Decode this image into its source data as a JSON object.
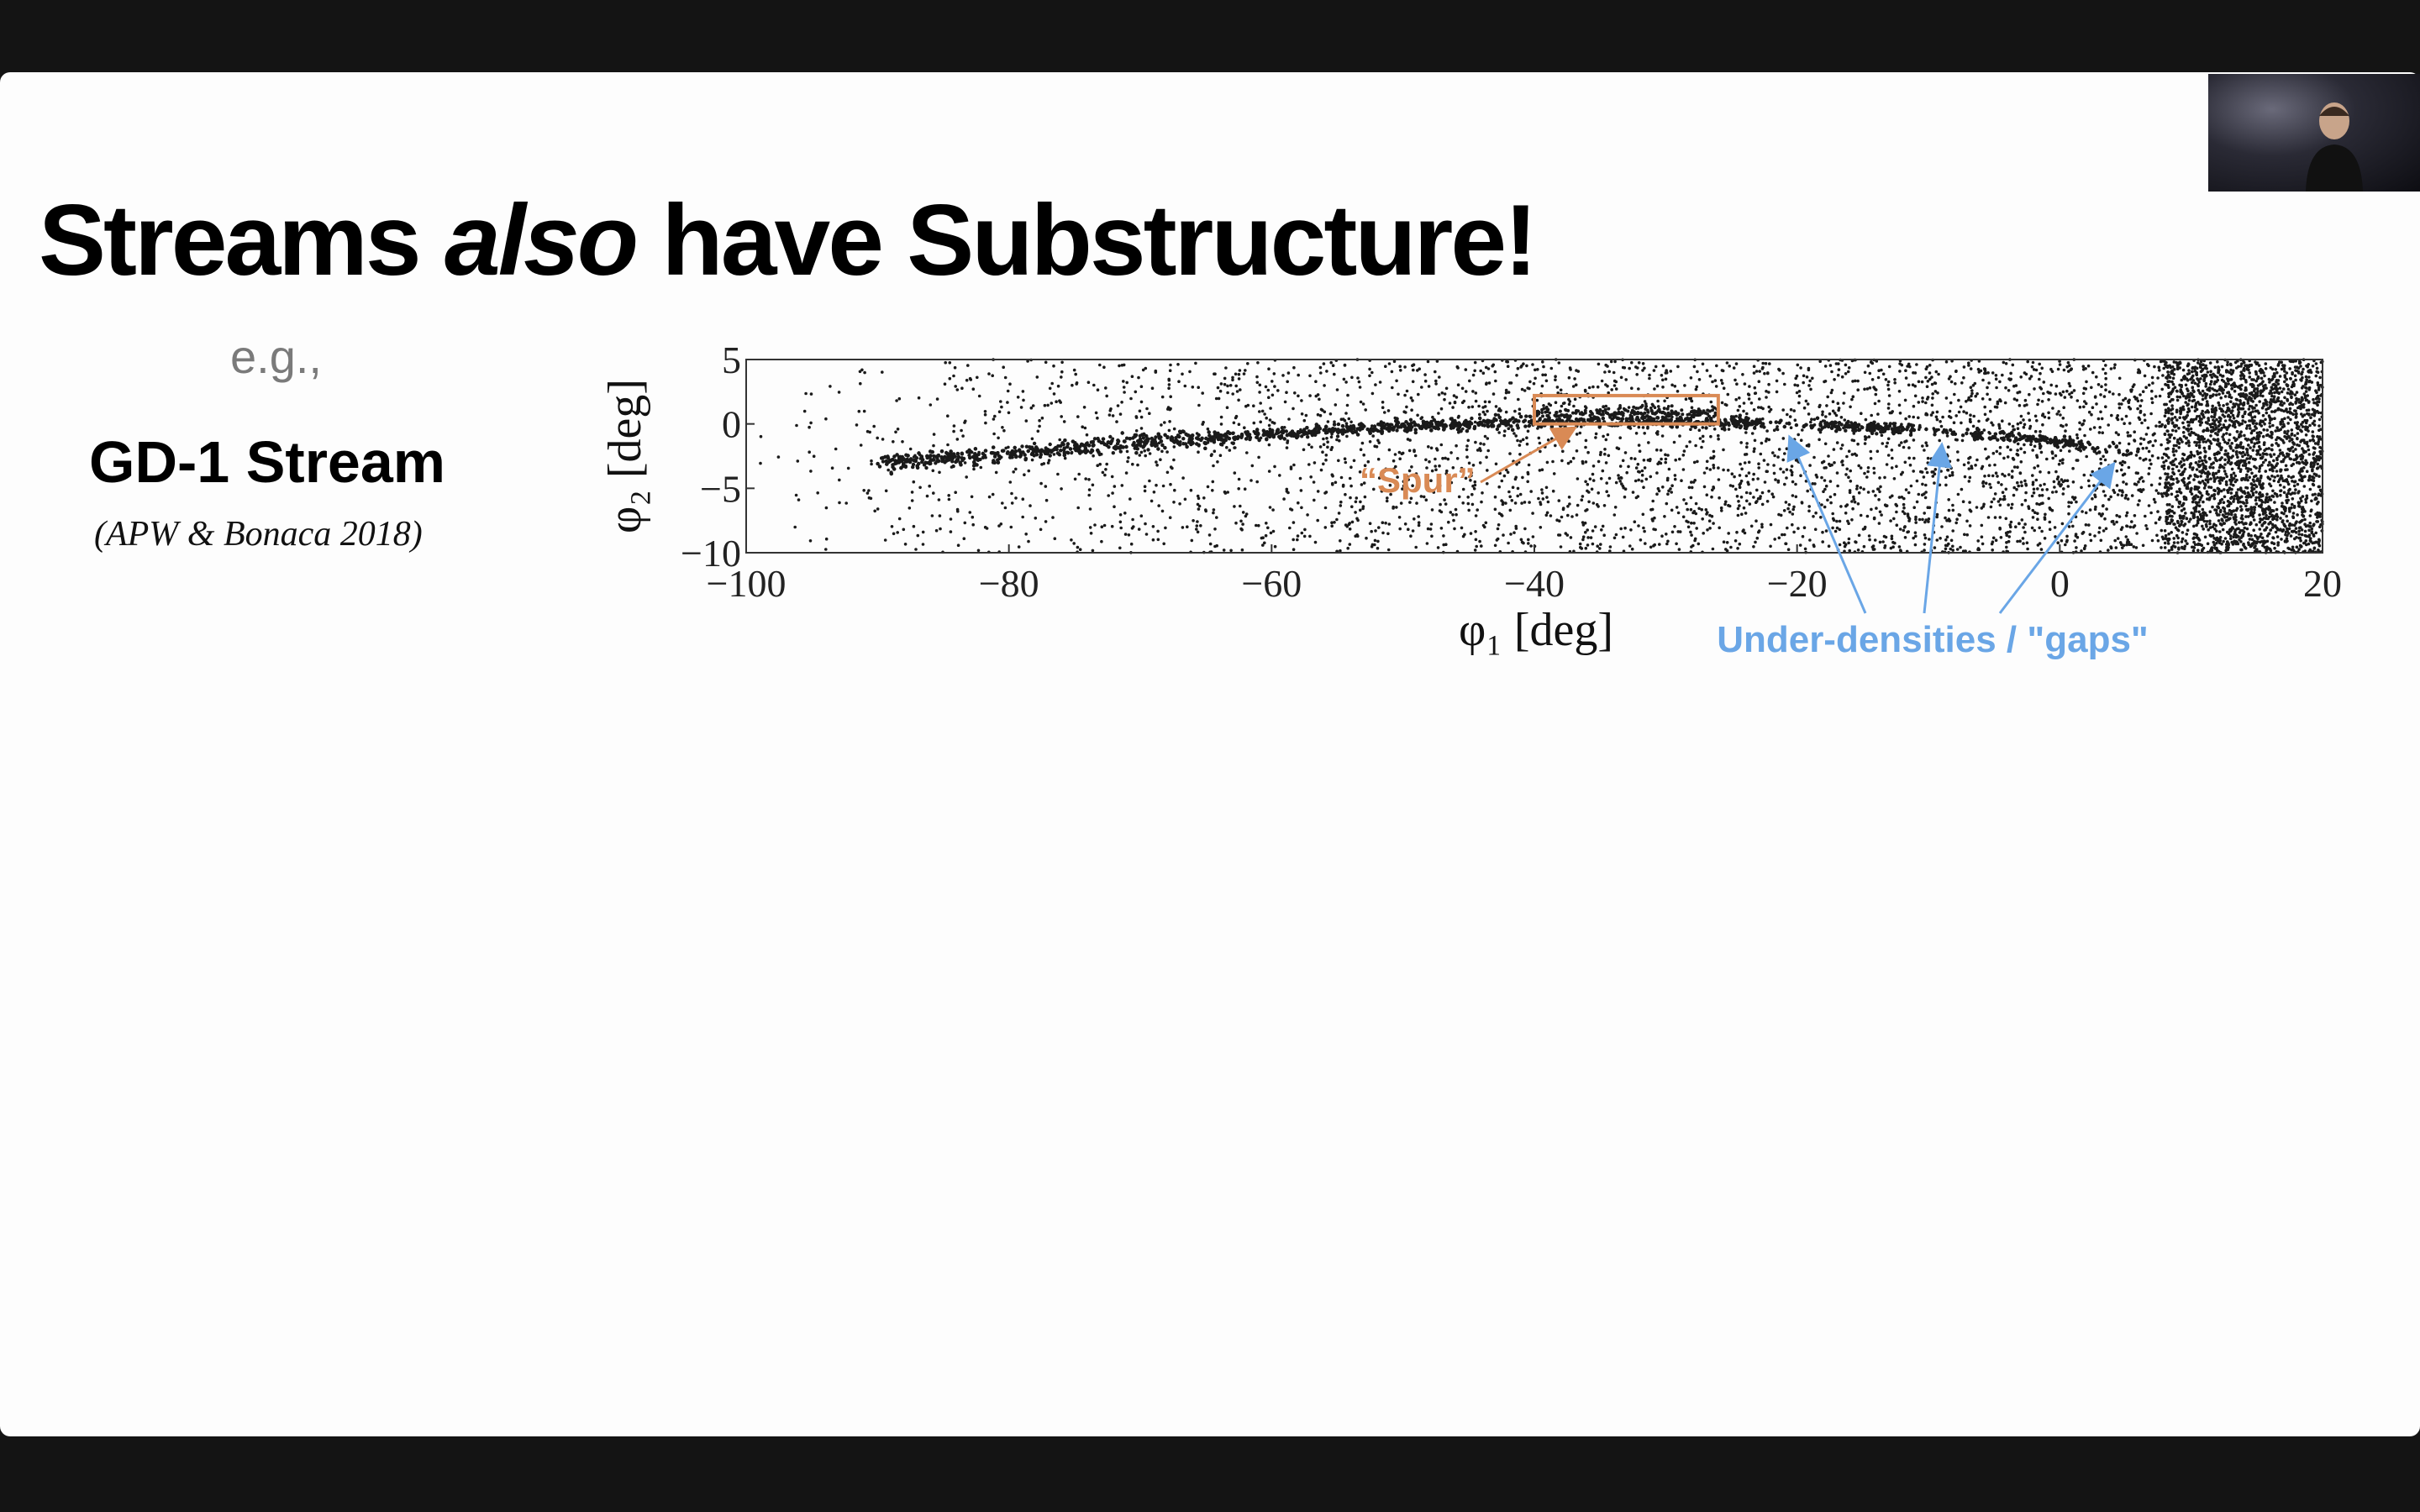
{
  "slide": {
    "title_prefix": "Streams ",
    "title_emphasis": "also",
    "title_suffix": " have Substructure!",
    "eg_text": "e.g.,",
    "stream_name": "GD-1 Stream",
    "citation": "(APW & Bonaca 2018)"
  },
  "annotations": {
    "spur_label": "“Spur”",
    "gaps_label": "Under-densities / \"gaps\""
  },
  "colors": {
    "spur": "#d98a55",
    "gaps": "#6aa6e6",
    "points": "#1a1a1a"
  },
  "webcam": {
    "icon": "presenter-video-thumbnail"
  },
  "chart_data": {
    "type": "scatter",
    "title": "",
    "xlabel": "φ₁ [deg]",
    "ylabel": "φ₂ [deg]",
    "xlim": [
      -100,
      20
    ],
    "ylim": [
      -10,
      5
    ],
    "xticks": [
      "−100",
      "−80",
      "−60",
      "−40",
      "−20",
      "0",
      "20"
    ],
    "xtick_values": [
      -100,
      -80,
      -60,
      -40,
      -20,
      0,
      20
    ],
    "yticks": [
      "5",
      "0",
      "−5",
      "−10"
    ],
    "ytick_values": [
      5,
      0,
      -5,
      -10
    ],
    "stream_track": [
      {
        "x": -90,
        "y": -3.0
      },
      {
        "x": -80,
        "y": -2.3
      },
      {
        "x": -70,
        "y": -1.4
      },
      {
        "x": -60,
        "y": -0.8
      },
      {
        "x": -50,
        "y": -0.2
      },
      {
        "x": -40,
        "y": 0.2
      },
      {
        "x": -30,
        "y": 0.2
      },
      {
        "x": -20,
        "y": 0.0
      },
      {
        "x": -10,
        "y": -0.5
      },
      {
        "x": 0,
        "y": -1.4
      },
      {
        "x": 5,
        "y": -2.2
      }
    ],
    "spur_box": {
      "x0": -40,
      "x1": -26,
      "y0": 0,
      "y1": 2.2
    },
    "gap_positions": [
      -20.5,
      -9,
      4
    ]
  }
}
